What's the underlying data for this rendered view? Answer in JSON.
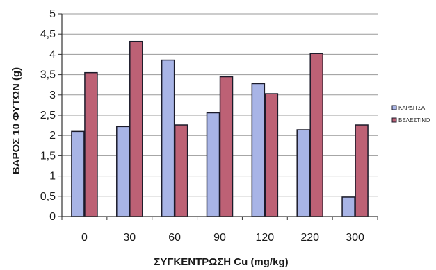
{
  "chart_data": {
    "type": "bar",
    "categories": [
      "0",
      "30",
      "60",
      "90",
      "120",
      "220",
      "300"
    ],
    "series": [
      {
        "name": "ΚΑΡΔΙΤΣΑ",
        "values": [
          2.1,
          2.22,
          3.86,
          2.56,
          3.28,
          2.14,
          0.48
        ],
        "color": "#a8b4e6"
      },
      {
        "name": "ΒΕΛΕΣΤΙΝΟ",
        "values": [
          3.55,
          4.32,
          2.26,
          3.45,
          3.03,
          4.02,
          2.26
        ],
        "color": "#bd6175"
      }
    ],
    "xlabel": "ΣΥΓΚΕΝΤΡΩΣΗ Cu (mg/kg)",
    "ylabel": "ΒΑΡΟΣ 10 ΦΥΤΩΝ (g)",
    "ylim": [
      0,
      5
    ],
    "yticks": [
      "0",
      "0,5",
      "1",
      "1,5",
      "2",
      "2,5",
      "3",
      "3,5",
      "4",
      "4,5",
      "5"
    ],
    "grid": true,
    "legend_position": "right"
  }
}
